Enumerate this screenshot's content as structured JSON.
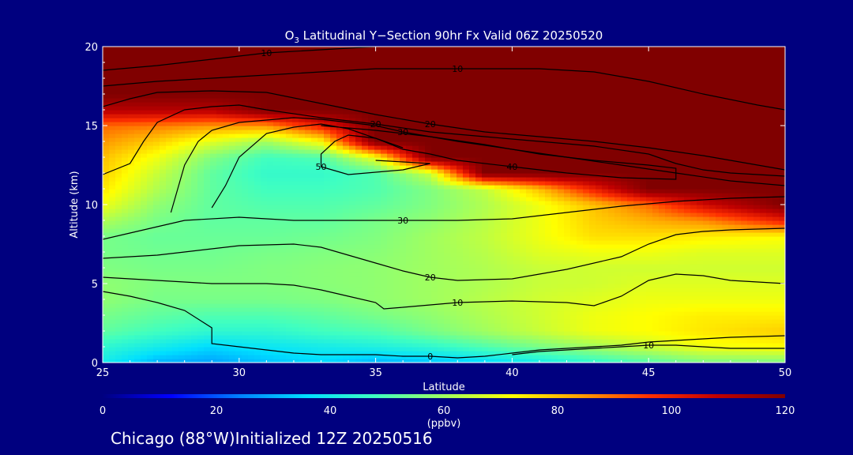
{
  "chart_data": {
    "type": "heatmap",
    "title": "Latitudinal Y−Section 90hr  Fx Valid 06Z 20250520",
    "title_species": "O",
    "title_subscript": "3",
    "xlabel": "Latitude",
    "ylabel": "Altitude (km)",
    "xlim": [
      25,
      50
    ],
    "ylim": [
      0,
      20
    ],
    "x_ticks": [
      "25",
      "30",
      "35",
      "40",
      "45",
      "50"
    ],
    "y_ticks": [
      "0",
      "5",
      "10",
      "15",
      "20"
    ],
    "colorbar": {
      "range": [
        0,
        120
      ],
      "ticks": [
        "0",
        "20",
        "40",
        "60",
        "80",
        "100",
        "120"
      ],
      "label": "(ppbv)",
      "colors": [
        "#000080",
        "#0000ff",
        "#0080ff",
        "#00e0ff",
        "#40ffc0",
        "#a0ff60",
        "#ffff00",
        "#ffa000",
        "#ff3000",
        "#c00000",
        "#800000"
      ]
    },
    "x": [
      25,
      27,
      29,
      31,
      33,
      35,
      37,
      39,
      41,
      43,
      45,
      47,
      50
    ],
    "y": [
      0,
      1,
      2,
      3,
      4,
      5,
      6,
      7,
      8,
      9,
      10,
      11,
      12,
      13,
      14,
      15,
      16,
      17,
      18,
      19,
      20
    ],
    "z": [
      [
        40,
        30,
        28,
        32,
        35,
        30,
        32,
        35,
        40,
        45,
        50,
        55,
        55
      ],
      [
        45,
        40,
        35,
        38,
        40,
        42,
        45,
        50,
        55,
        60,
        65,
        70,
        72
      ],
      [
        52,
        48,
        45,
        45,
        48,
        50,
        55,
        60,
        65,
        70,
        72,
        75,
        78
      ],
      [
        55,
        52,
        50,
        50,
        52,
        55,
        58,
        62,
        66,
        70,
        72,
        74,
        74
      ],
      [
        58,
        55,
        55,
        55,
        56,
        58,
        60,
        63,
        66,
        68,
        70,
        70,
        70
      ],
      [
        58,
        56,
        56,
        56,
        57,
        58,
        60,
        62,
        65,
        66,
        68,
        68,
        68
      ],
      [
        56,
        55,
        55,
        56,
        57,
        58,
        60,
        62,
        65,
        66,
        66,
        66,
        66
      ],
      [
        55,
        54,
        54,
        55,
        56,
        57,
        60,
        63,
        68,
        70,
        70,
        68,
        68
      ],
      [
        55,
        53,
        53,
        53,
        54,
        56,
        60,
        64,
        70,
        76,
        76,
        74,
        72
      ],
      [
        62,
        55,
        52,
        52,
        52,
        55,
        58,
        63,
        70,
        78,
        82,
        86,
        100
      ],
      [
        70,
        58,
        52,
        50,
        50,
        52,
        56,
        62,
        70,
        80,
        90,
        105,
        120
      ],
      [
        75,
        62,
        52,
        48,
        48,
        50,
        56,
        64,
        80,
        100,
        120,
        120,
        120
      ],
      [
        78,
        65,
        52,
        46,
        46,
        50,
        65,
        120,
        120,
        120,
        120,
        120,
        120
      ],
      [
        80,
        70,
        56,
        48,
        50,
        70,
        120,
        120,
        120,
        120,
        120,
        120,
        120
      ],
      [
        85,
        78,
        68,
        60,
        72,
        120,
        120,
        120,
        120,
        120,
        120,
        120,
        120
      ],
      [
        90,
        88,
        85,
        85,
        100,
        120,
        120,
        120,
        120,
        120,
        120,
        120,
        120
      ],
      [
        110,
        110,
        110,
        120,
        120,
        120,
        120,
        120,
        120,
        120,
        120,
        120,
        120
      ],
      [
        120,
        120,
        120,
        120,
        120,
        120,
        120,
        120,
        120,
        120,
        120,
        120,
        120
      ],
      [
        120,
        120,
        120,
        120,
        120,
        120,
        120,
        120,
        120,
        120,
        120,
        120,
        120
      ],
      [
        120,
        120,
        120,
        120,
        120,
        120,
        120,
        120,
        120,
        120,
        120,
        120,
        120
      ],
      [
        120,
        120,
        120,
        120,
        120,
        120,
        120,
        120,
        120,
        120,
        120,
        120,
        120
      ]
    ],
    "contour_line_color": "#000000",
    "contours": [
      {
        "label": "0",
        "points": [
          [
            25,
            4.5
          ],
          [
            26,
            4.2
          ],
          [
            27,
            3.8
          ],
          [
            28,
            3.3
          ],
          [
            29,
            2.2
          ],
          [
            29,
            1.2
          ],
          [
            30,
            1.0
          ],
          [
            31,
            0.8
          ],
          [
            32,
            0.6
          ],
          [
            33,
            0.5
          ],
          [
            34,
            0.5
          ],
          [
            35,
            0.5
          ],
          [
            36,
            0.4
          ],
          [
            37,
            0.4
          ],
          [
            38,
            0.3
          ],
          [
            39,
            0.4
          ],
          [
            40,
            0.6
          ],
          [
            41,
            0.8
          ],
          [
            42,
            0.9
          ],
          [
            43,
            1.0
          ],
          [
            44,
            1.1
          ],
          [
            45,
            1.3
          ],
          [
            46,
            1.4
          ],
          [
            47,
            1.5
          ],
          [
            48,
            1.6
          ],
          [
            50,
            1.7
          ]
        ]
      },
      {
        "label": "10",
        "points": [
          [
            25,
            5.4
          ],
          [
            27,
            5.2
          ],
          [
            29,
            5.0
          ],
          [
            31,
            5.0
          ],
          [
            32,
            4.9
          ],
          [
            33,
            4.6
          ],
          [
            34,
            4.2
          ],
          [
            35,
            3.8
          ],
          [
            35.3,
            3.4
          ],
          [
            36,
            3.5
          ],
          [
            38,
            3.8
          ],
          [
            40,
            3.9
          ],
          [
            42,
            3.8
          ],
          [
            43,
            3.6
          ],
          [
            44,
            4.2
          ],
          [
            45,
            5.2
          ],
          [
            46,
            5.6
          ],
          [
            47,
            5.5
          ],
          [
            48,
            5.2
          ],
          [
            50,
            5.0
          ]
        ]
      },
      {
        "label": "20",
        "points": [
          [
            25,
            6.6
          ],
          [
            27,
            6.8
          ],
          [
            28,
            7.0
          ],
          [
            30,
            7.4
          ],
          [
            32,
            7.5
          ],
          [
            33,
            7.3
          ],
          [
            34,
            6.8
          ],
          [
            35,
            6.3
          ],
          [
            36,
            5.8
          ],
          [
            37,
            5.4
          ],
          [
            38,
            5.2
          ],
          [
            40,
            5.3
          ],
          [
            42,
            5.9
          ],
          [
            44,
            6.7
          ],
          [
            45,
            7.5
          ],
          [
            46,
            8.1
          ],
          [
            47,
            8.3
          ],
          [
            48,
            8.4
          ],
          [
            50,
            8.5
          ]
        ]
      },
      {
        "label": "30",
        "points": [
          [
            25,
            7.8
          ],
          [
            26,
            8.2
          ],
          [
            27,
            8.6
          ],
          [
            28,
            9.0
          ],
          [
            30,
            9.2
          ],
          [
            32,
            9.0
          ],
          [
            34,
            9.0
          ],
          [
            36,
            9.0
          ],
          [
            38,
            9.0
          ],
          [
            40,
            9.1
          ],
          [
            42,
            9.5
          ],
          [
            44,
            9.9
          ],
          [
            46,
            10.2
          ],
          [
            48,
            10.4
          ],
          [
            50,
            10.5
          ]
        ]
      },
      {
        "label": "10",
        "points": [
          [
            25,
            18.5
          ],
          [
            27,
            18.8
          ],
          [
            29,
            19.2
          ],
          [
            31,
            19.6
          ],
          [
            33,
            19.8
          ],
          [
            35,
            20.0
          ]
        ]
      },
      {
        "label": "10",
        "points": [
          [
            25,
            17.5
          ],
          [
            27,
            17.8
          ],
          [
            29,
            18.0
          ],
          [
            31,
            18.2
          ],
          [
            33,
            18.4
          ],
          [
            35,
            18.6
          ],
          [
            38,
            18.6
          ],
          [
            41,
            18.6
          ],
          [
            43,
            18.4
          ],
          [
            45,
            17.8
          ],
          [
            47,
            17.0
          ],
          [
            49,
            16.3
          ],
          [
            50,
            16.0
          ]
        ]
      },
      {
        "label": "20",
        "points": [
          [
            25,
            16.2
          ],
          [
            26,
            16.7
          ],
          [
            27,
            17.1
          ],
          [
            29,
            17.2
          ],
          [
            31,
            17.1
          ],
          [
            33,
            16.4
          ],
          [
            35,
            15.7
          ],
          [
            37,
            15.1
          ],
          [
            39,
            14.6
          ],
          [
            41,
            14.3
          ],
          [
            43,
            14.0
          ],
          [
            45,
            13.6
          ],
          [
            47,
            13.1
          ],
          [
            49,
            12.5
          ],
          [
            50,
            12.2
          ]
        ]
      },
      {
        "label": "20",
        "points": [
          [
            25,
            11.9
          ],
          [
            26,
            12.6
          ],
          [
            26.5,
            14.0
          ],
          [
            27,
            15.2
          ],
          [
            28,
            16.0
          ],
          [
            29,
            16.2
          ],
          [
            30,
            16.3
          ],
          [
            31,
            16.0
          ],
          [
            33,
            15.5
          ],
          [
            35,
            15.1
          ],
          [
            37,
            14.6
          ],
          [
            39,
            14.3
          ],
          [
            41,
            14.0
          ],
          [
            43,
            13.7
          ],
          [
            45,
            13.2
          ],
          [
            46,
            12.6
          ],
          [
            47,
            12.2
          ],
          [
            48,
            12.0
          ],
          [
            50,
            11.8
          ]
        ]
      },
      {
        "label": "30",
        "points": [
          [
            27.5,
            9.5
          ],
          [
            28,
            12.5
          ],
          [
            28.5,
            14.0
          ],
          [
            29,
            14.7
          ],
          [
            30,
            15.2
          ],
          [
            32,
            15.5
          ],
          [
            33,
            15.4
          ],
          [
            35,
            15.0
          ],
          [
            36,
            14.6
          ],
          [
            38,
            14.0
          ],
          [
            40,
            13.5
          ],
          [
            42,
            13.0
          ],
          [
            44,
            12.5
          ],
          [
            46,
            12.0
          ],
          [
            48,
            11.5
          ],
          [
            50,
            11.2
          ]
        ]
      },
      {
        "label": "40",
        "points": [
          [
            29,
            9.8
          ],
          [
            29.5,
            11.2
          ],
          [
            30,
            13.0
          ],
          [
            31,
            14.5
          ],
          [
            32,
            14.9
          ],
          [
            33,
            15.1
          ],
          [
            34,
            14.8
          ],
          [
            35,
            14.2
          ],
          [
            36,
            13.5
          ],
          [
            37,
            13.2
          ],
          [
            38,
            12.8
          ],
          [
            40,
            12.4
          ],
          [
            42,
            12.0
          ],
          [
            44,
            11.7
          ],
          [
            46,
            11.6
          ],
          [
            46,
            12.3
          ],
          [
            45,
            12.5
          ],
          [
            43,
            12.8
          ],
          [
            41,
            13.2
          ],
          [
            39,
            13.8
          ],
          [
            37,
            14.3
          ],
          [
            35,
            14.7
          ],
          [
            33,
            15.0
          ]
        ]
      },
      {
        "label": "50",
        "points": [
          [
            35,
            12.8
          ],
          [
            36,
            12.7
          ],
          [
            37,
            12.6
          ],
          [
            36,
            12.2
          ],
          [
            34,
            11.9
          ],
          [
            33,
            12.4
          ],
          [
            33,
            13.2
          ],
          [
            33.5,
            14.0
          ],
          [
            34,
            14.4
          ],
          [
            35,
            14.2
          ],
          [
            36,
            13.6
          ]
        ]
      },
      {
        "label": "10",
        "points": [
          [
            40,
            0.5
          ],
          [
            41,
            0.7
          ],
          [
            42,
            0.8
          ],
          [
            43,
            0.9
          ],
          [
            44,
            1.0
          ],
          [
            45,
            1.1
          ],
          [
            46,
            1.1
          ],
          [
            47,
            1.0
          ],
          [
            48,
            0.9
          ],
          [
            50,
            0.9
          ]
        ]
      }
    ]
  },
  "footer": {
    "text": "Chicago (88°W)Initialized 12Z 20250516"
  }
}
